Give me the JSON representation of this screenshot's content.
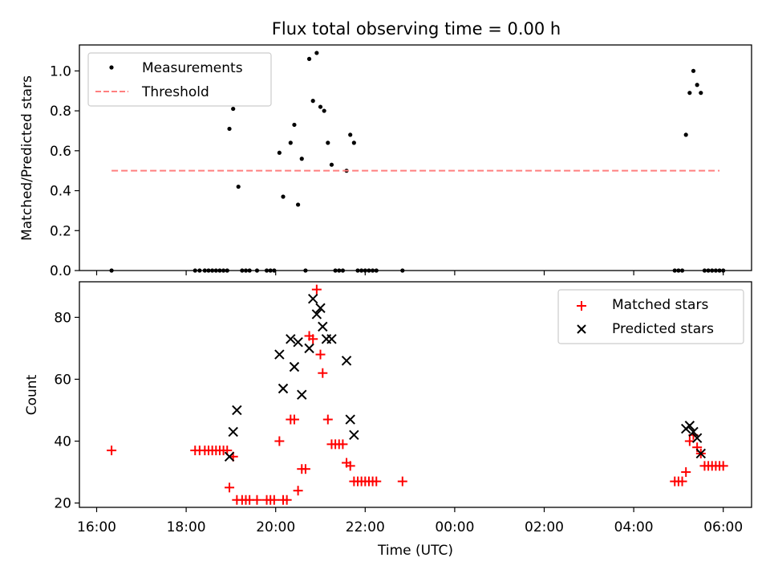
{
  "chart_data": [
    {
      "type": "scatter",
      "title": "Flux total observing time = 0.00 h",
      "xlabel": "",
      "ylabel": "Matched/Predicted stars",
      "ylim": [
        0,
        1.13
      ],
      "yticks": [
        "0.0",
        "0.2",
        "0.4",
        "0.6",
        "0.8",
        "1.0"
      ],
      "legend_position": "top-left",
      "series": [
        {
          "name": "Measurements",
          "marker": "dot",
          "color": "#000000",
          "points": [
            [
              "16:20",
              0.0
            ],
            [
              "18:12",
              0.0
            ],
            [
              "18:18",
              0.0
            ],
            [
              "18:25",
              0.0
            ],
            [
              "18:30",
              0.0
            ],
            [
              "18:35",
              0.0
            ],
            [
              "18:40",
              0.0
            ],
            [
              "18:45",
              0.0
            ],
            [
              "18:50",
              0.0
            ],
            [
              "18:55",
              0.0
            ],
            [
              "18:58",
              0.71
            ],
            [
              "19:03",
              0.81
            ],
            [
              "19:10",
              0.42
            ],
            [
              "19:15",
              0.0
            ],
            [
              "19:20",
              0.0
            ],
            [
              "19:25",
              0.0
            ],
            [
              "19:35",
              0.0
            ],
            [
              "19:48",
              0.0
            ],
            [
              "19:53",
              0.0
            ],
            [
              "19:58",
              0.0
            ],
            [
              "20:05",
              0.59
            ],
            [
              "20:10",
              0.37
            ],
            [
              "20:20",
              0.64
            ],
            [
              "20:25",
              0.73
            ],
            [
              "20:30",
              0.33
            ],
            [
              "20:35",
              0.56
            ],
            [
              "20:40",
              0.0
            ],
            [
              "20:45",
              1.06
            ],
            [
              "20:50",
              0.85
            ],
            [
              "20:55",
              1.09
            ],
            [
              "21:00",
              0.82
            ],
            [
              "21:05",
              0.8
            ],
            [
              "21:10",
              0.64
            ],
            [
              "21:15",
              0.53
            ],
            [
              "21:20",
              0.0
            ],
            [
              "21:25",
              0.0
            ],
            [
              "21:30",
              0.0
            ],
            [
              "21:35",
              0.5
            ],
            [
              "21:40",
              0.68
            ],
            [
              "21:45",
              0.64
            ],
            [
              "21:50",
              0.0
            ],
            [
              "21:55",
              0.0
            ],
            [
              "22:00",
              0.0
            ],
            [
              "22:05",
              0.0
            ],
            [
              "22:10",
              0.0
            ],
            [
              "22:15",
              0.0
            ],
            [
              "22:50",
              0.0
            ],
            [
              "04:55",
              0.0
            ],
            [
              "05:00",
              0.0
            ],
            [
              "05:05",
              0.0
            ],
            [
              "05:10",
              0.68
            ],
            [
              "05:15",
              0.89
            ],
            [
              "05:20",
              1.0
            ],
            [
              "05:25",
              0.93
            ],
            [
              "05:30",
              0.89
            ],
            [
              "05:35",
              0.0
            ],
            [
              "05:40",
              0.0
            ],
            [
              "05:45",
              0.0
            ],
            [
              "05:50",
              0.0
            ],
            [
              "05:55",
              0.0
            ],
            [
              "06:00",
              0.0
            ]
          ]
        },
        {
          "name": "Threshold",
          "marker": "dashed-line",
          "color": "#ff7f7f",
          "points": [
            [
              "16:20",
              0.5
            ],
            [
              "05:55",
              0.5
            ]
          ]
        }
      ]
    },
    {
      "type": "scatter",
      "title": "",
      "xlabel": "Time (UTC)",
      "ylabel": "Count",
      "ylim": [
        18.6,
        91.5
      ],
      "yticks": [
        "20",
        "40",
        "60",
        "80"
      ],
      "xticks": [
        "16:00",
        "18:00",
        "20:00",
        "22:00",
        "00:00",
        "02:00",
        "04:00",
        "06:00"
      ],
      "legend_position": "top-right",
      "series": [
        {
          "name": "Matched stars",
          "marker": "plus",
          "color": "#ff0000",
          "points": [
            [
              "16:20",
              37
            ],
            [
              "18:12",
              37
            ],
            [
              "18:18",
              37
            ],
            [
              "18:25",
              37
            ],
            [
              "18:30",
              37
            ],
            [
              "18:35",
              37
            ],
            [
              "18:40",
              37
            ],
            [
              "18:45",
              37
            ],
            [
              "18:50",
              37
            ],
            [
              "18:55",
              37
            ],
            [
              "18:58",
              25
            ],
            [
              "19:03",
              35
            ],
            [
              "19:08",
              21
            ],
            [
              "19:15",
              21
            ],
            [
              "19:20",
              21
            ],
            [
              "19:25",
              21
            ],
            [
              "19:35",
              21
            ],
            [
              "19:48",
              21
            ],
            [
              "19:53",
              21
            ],
            [
              "19:58",
              21
            ],
            [
              "20:05",
              40
            ],
            [
              "20:10",
              21
            ],
            [
              "20:15",
              21
            ],
            [
              "20:20",
              47
            ],
            [
              "20:25",
              47
            ],
            [
              "20:30",
              24
            ],
            [
              "20:35",
              31
            ],
            [
              "20:40",
              31
            ],
            [
              "20:45",
              74
            ],
            [
              "20:50",
              73
            ],
            [
              "20:55",
              89
            ],
            [
              "21:00",
              68
            ],
            [
              "21:03",
              62
            ],
            [
              "21:10",
              47
            ],
            [
              "21:15",
              39
            ],
            [
              "21:20",
              39
            ],
            [
              "21:25",
              39
            ],
            [
              "21:30",
              39
            ],
            [
              "21:35",
              33
            ],
            [
              "21:40",
              32
            ],
            [
              "21:45",
              27
            ],
            [
              "21:50",
              27
            ],
            [
              "21:55",
              27
            ],
            [
              "22:00",
              27
            ],
            [
              "22:05",
              27
            ],
            [
              "22:10",
              27
            ],
            [
              "22:15",
              27
            ],
            [
              "22:50",
              27
            ],
            [
              "04:55",
              27
            ],
            [
              "05:00",
              27
            ],
            [
              "05:05",
              27
            ],
            [
              "05:10",
              30
            ],
            [
              "05:15",
              40
            ],
            [
              "05:20",
              42
            ],
            [
              "05:25",
              38
            ],
            [
              "05:30",
              36
            ],
            [
              "05:35",
              32
            ],
            [
              "05:40",
              32
            ],
            [
              "05:45",
              32
            ],
            [
              "05:50",
              32
            ],
            [
              "05:55",
              32
            ],
            [
              "06:00",
              32
            ]
          ]
        },
        {
          "name": "Predicted stars",
          "marker": "x",
          "color": "#000000",
          "points": [
            [
              "18:58",
              35
            ],
            [
              "19:03",
              43
            ],
            [
              "19:08",
              50
            ],
            [
              "20:05",
              68
            ],
            [
              "20:10",
              57
            ],
            [
              "20:20",
              73
            ],
            [
              "20:25",
              64
            ],
            [
              "20:30",
              72
            ],
            [
              "20:35",
              55
            ],
            [
              "20:45",
              70
            ],
            [
              "20:50",
              86
            ],
            [
              "20:55",
              81
            ],
            [
              "21:00",
              83
            ],
            [
              "21:03",
              77
            ],
            [
              "21:08",
              73
            ],
            [
              "21:15",
              73
            ],
            [
              "21:35",
              66
            ],
            [
              "21:40",
              47
            ],
            [
              "21:45",
              42
            ],
            [
              "05:10",
              44
            ],
            [
              "05:15",
              45
            ],
            [
              "05:20",
              43
            ],
            [
              "05:25",
              41
            ],
            [
              "05:30",
              36
            ]
          ]
        }
      ]
    }
  ]
}
